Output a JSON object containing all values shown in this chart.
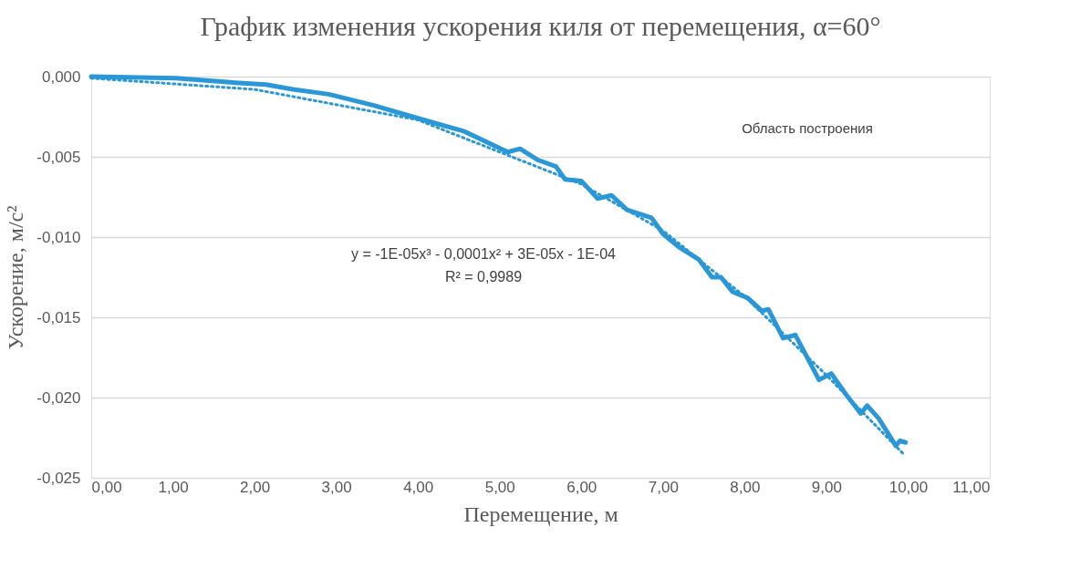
{
  "chart_data": {
    "type": "line",
    "title": "График изменения ускорения киля от перемещения, α=60°",
    "xlabel": "Перемещение, м",
    "ylabel": "Ускорение, м/с²",
    "xlim": [
      0,
      11
    ],
    "xticks": [
      {
        "value": 0,
        "label": "0,00"
      },
      {
        "value": 1,
        "label": "1,00"
      },
      {
        "value": 2,
        "label": "2,00"
      },
      {
        "value": 3,
        "label": "3,00"
      },
      {
        "value": 4,
        "label": "4,00"
      },
      {
        "value": 5,
        "label": "5,00"
      },
      {
        "value": 6,
        "label": "6,00"
      },
      {
        "value": 7,
        "label": "7,00"
      },
      {
        "value": 8,
        "label": "8,00"
      },
      {
        "value": 9,
        "label": "9,00"
      },
      {
        "value": 10,
        "label": "10,00"
      },
      {
        "value": 11,
        "label": "11,00"
      }
    ],
    "ylim": [
      -0.025,
      0
    ],
    "yticks": [
      {
        "value": 0,
        "label": "0,000"
      },
      {
        "value": -0.005,
        "label": "-0,005"
      },
      {
        "value": -0.01,
        "label": "-0,010"
      },
      {
        "value": -0.015,
        "label": "-0,015"
      },
      {
        "value": -0.02,
        "label": "-0,020"
      },
      {
        "value": -0.025,
        "label": "-0,025"
      }
    ],
    "grid": "y",
    "series": [
      {
        "color": "#2a97d6",
        "line_style": "solid",
        "x": [
          0,
          1.04,
          1.81,
          2.14,
          2.47,
          2.91,
          3.46,
          4.0,
          4.56,
          5.1,
          5.25,
          5.47,
          5.69,
          5.8,
          6.0,
          6.2,
          6.37,
          6.56,
          6.86,
          7.0,
          7.19,
          7.44,
          7.6,
          7.71,
          7.85,
          8.04,
          8.21,
          8.29,
          8.47,
          8.62,
          8.91,
          9.06,
          9.24,
          9.42,
          9.5,
          9.64,
          9.85,
          9.9,
          9.97
        ],
        "values": [
          0,
          -0.0001,
          -0.0004,
          -0.0005,
          -0.0008,
          -0.0011,
          -0.0018,
          -0.0026,
          -0.0034,
          -0.0047,
          -0.0045,
          -0.0052,
          -0.0056,
          -0.0064,
          -0.0065,
          -0.0076,
          -0.0074,
          -0.0083,
          -0.0088,
          -0.0098,
          -0.0106,
          -0.0114,
          -0.0125,
          -0.0125,
          -0.0134,
          -0.0138,
          -0.0146,
          -0.0145,
          -0.0163,
          -0.0161,
          -0.0189,
          -0.0185,
          -0.0198,
          -0.021,
          -0.0205,
          -0.0213,
          -0.023,
          -0.0227,
          -0.0228
        ]
      },
      {
        "color": "#2a97d6",
        "line_style": "dotted",
        "x": [
          0,
          2,
          4,
          6,
          7,
          8,
          9,
          9.96
        ],
        "values": [
          -0.0001,
          -0.0008,
          -0.0027,
          -0.0067,
          -0.0096,
          -0.0137,
          -0.0186,
          -0.0236
        ]
      }
    ],
    "annotations": [
      "y = -1E-05x³ - 0,0001x² + 3E-05x - 1E-04",
      "R² = 0,9989",
      "Область построения"
    ]
  }
}
